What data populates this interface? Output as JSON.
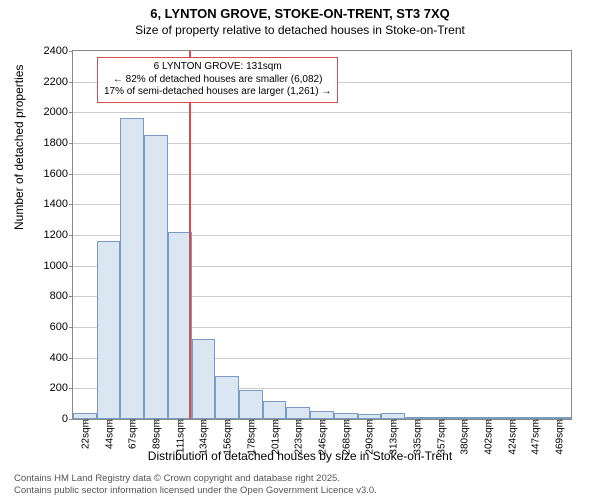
{
  "title": "6, LYNTON GROVE, STOKE-ON-TRENT, ST3 7XQ",
  "subtitle": "Size of property relative to detached houses in Stoke-on-Trent",
  "chart": {
    "type": "histogram",
    "y_axis": {
      "label": "Number of detached properties",
      "min": 0,
      "max": 2400,
      "tick_step": 200,
      "ticks": [
        0,
        200,
        400,
        600,
        800,
        1000,
        1200,
        1400,
        1600,
        1800,
        2000,
        2200,
        2400
      ]
    },
    "x_axis": {
      "label": "Distribution of detached houses by size in Stoke-on-Trent",
      "ticks": [
        "22sqm",
        "44sqm",
        "67sqm",
        "89sqm",
        "111sqm",
        "134sqm",
        "156sqm",
        "178sqm",
        "201sqm",
        "223sqm",
        "246sqm",
        "268sqm",
        "290sqm",
        "313sqm",
        "335sqm",
        "357sqm",
        "380sqm",
        "402sqm",
        "424sqm",
        "447sqm",
        "469sqm"
      ]
    },
    "bars": [
      40,
      1160,
      1960,
      1850,
      1220,
      520,
      280,
      190,
      120,
      80,
      55,
      40,
      30,
      40,
      15,
      10,
      8,
      5,
      3,
      2,
      2
    ],
    "bar_fill": "#dbe6f3",
    "bar_stroke": "#7a9bc4",
    "grid_color": "#cccccc",
    "background": "#ffffff",
    "reference_line": {
      "x_index": 4.9,
      "color": "#d84c4c"
    },
    "annotation": {
      "line1": "6 LYNTON GROVE: 131sqm",
      "line2": "← 82% of detached houses are smaller (6,082)",
      "line3": "17% of semi-detached houses are larger (1,261) →",
      "border_color": "#d84c4c"
    }
  },
  "footer": {
    "line1": "Contains HM Land Registry data © Crown copyright and database right 2025.",
    "line2": "Contains public sector information licensed under the Open Government Licence v3.0."
  }
}
